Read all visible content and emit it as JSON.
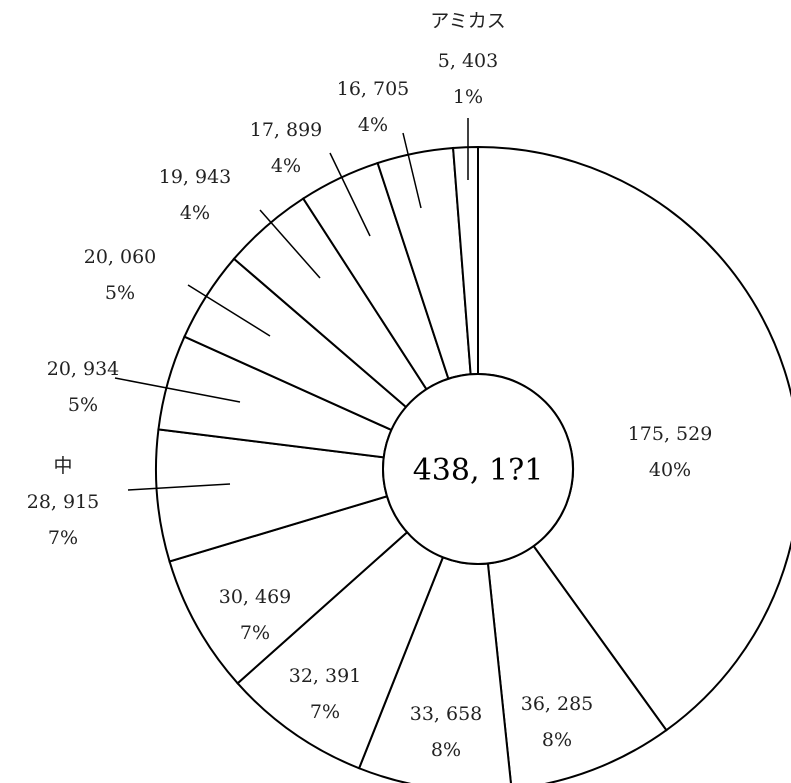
{
  "chart_data": {
    "type": "pie",
    "style": "donut",
    "total_label": "438, 1?1",
    "slices": [
      {
        "value_label": "175, 529",
        "percent_label": "40%",
        "value": 175529,
        "name": ""
      },
      {
        "value_label": "36, 285",
        "percent_label": "8%",
        "value": 36285,
        "name": ""
      },
      {
        "value_label": "33, 658",
        "percent_label": "8%",
        "value": 33658,
        "name": ""
      },
      {
        "value_label": "32, 391",
        "percent_label": "7%",
        "value": 32391,
        "name": ""
      },
      {
        "value_label": "30, 469",
        "percent_label": "7%",
        "value": 30469,
        "name": ""
      },
      {
        "value_label": "28, 915",
        "percent_label": "7%",
        "value": 28915,
        "name": "中"
      },
      {
        "value_label": "20, 934",
        "percent_label": "5%",
        "value": 20934,
        "name": ""
      },
      {
        "value_label": "20, 060",
        "percent_label": "5%",
        "value": 20060,
        "name": ""
      },
      {
        "value_label": "19, 943",
        "percent_label": "4%",
        "value": 19943,
        "name": ""
      },
      {
        "value_label": "17, 899",
        "percent_label": "4%",
        "value": 17899,
        "name": ""
      },
      {
        "value_label": "16, 705",
        "percent_label": "4%",
        "value": 16705,
        "name": ""
      },
      {
        "value_label": "5, 403",
        "percent_label": "1%",
        "value": 5403,
        "name": "アミカス"
      }
    ],
    "colors": {
      "fill": "#ffffff",
      "stroke": "#000000",
      "text": "#222222"
    }
  }
}
